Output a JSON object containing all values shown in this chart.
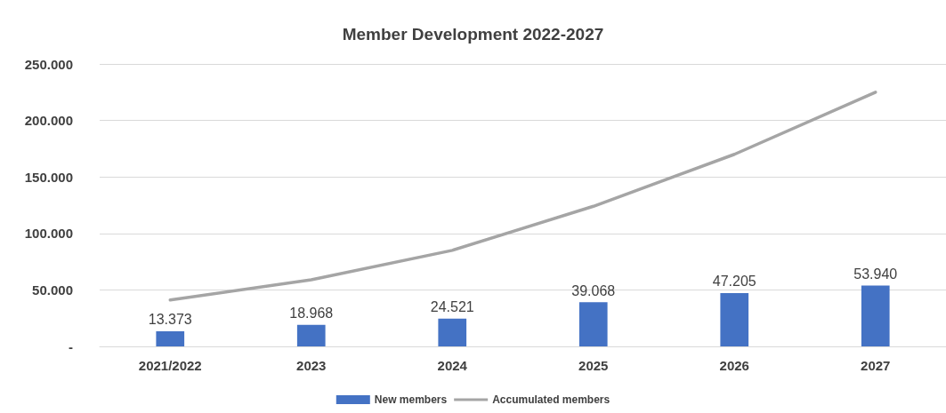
{
  "chart_data": {
    "type": "bar",
    "title": "Member Development 2022-2027",
    "categories": [
      "2021/2022",
      "2023",
      "2024",
      "2025",
      "2026",
      "2027"
    ],
    "series": [
      {
        "name": "New members",
        "color": "#4472c4",
        "values": [
          13373,
          18968,
          24521,
          39068,
          47205,
          53940
        ],
        "value_labels": [
          "13.373",
          "18.968",
          "24.521",
          "39.068",
          "47.205",
          "53.940"
        ]
      },
      {
        "name": "Accumulated members",
        "type": "line",
        "color": "#a5a5a5",
        "values": [
          41000,
          59000,
          85000,
          124000,
          170000,
          225000
        ]
      }
    ],
    "ylim": [
      0,
      250000
    ],
    "yticks": [
      {
        "value": 0,
        "label": "-"
      },
      {
        "value": 50000,
        "label": "50.000"
      },
      {
        "value": 100000,
        "label": "100.000"
      },
      {
        "value": 150000,
        "label": "150.000"
      },
      {
        "value": 200000,
        "label": "200.000"
      },
      {
        "value": 250000,
        "label": "250.000"
      }
    ],
    "grid": "y",
    "legend": "bottom",
    "marker": "none"
  }
}
